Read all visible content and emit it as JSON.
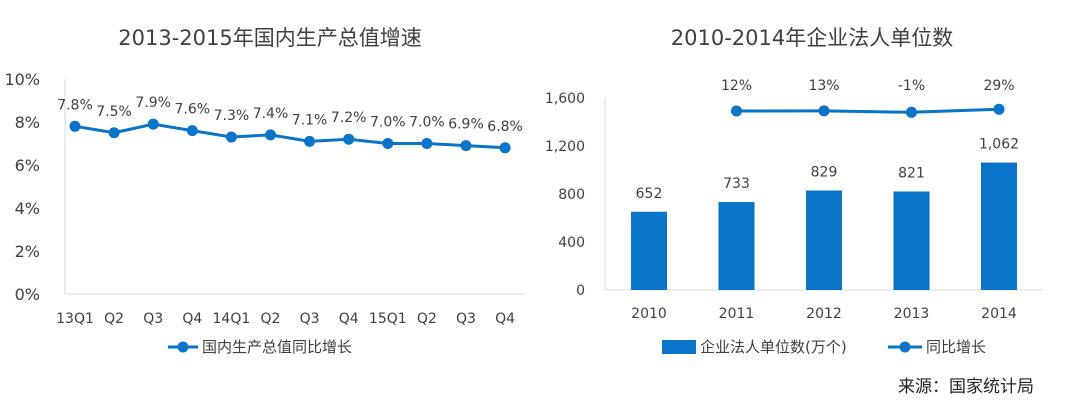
{
  "chart_data": [
    {
      "type": "line",
      "title": "2013-2015年国内生产总值增速",
      "categories": [
        "13Q1",
        "Q2",
        "Q3",
        "Q4",
        "14Q1",
        "Q2",
        "Q3",
        "Q4",
        "15Q1",
        "Q2",
        "Q3",
        "Q4"
      ],
      "series": [
        {
          "name": "国内生产总值同比增长",
          "values": [
            7.8,
            7.5,
            7.9,
            7.6,
            7.3,
            7.4,
            7.1,
            7.2,
            7.0,
            7.0,
            6.9,
            6.8
          ],
          "color": "#0a74c8"
        }
      ],
      "data_labels": [
        "7.8%",
        "7.5%",
        "7.9%",
        "7.6%",
        "7.3%",
        "7.4%",
        "7.1%",
        "7.2%",
        "7.0%",
        "7.0%",
        "6.9%",
        "6.8%"
      ],
      "yticks": [
        "0%",
        "2%",
        "4%",
        "6%",
        "8%",
        "10%"
      ],
      "ylim": [
        0,
        10
      ],
      "grid": false,
      "legend": "bottom"
    },
    {
      "type": "bar",
      "title": "2010-2014年企业法人单位数",
      "categories": [
        "2010",
        "2011",
        "2012",
        "2013",
        "2014"
      ],
      "series": [
        {
          "name": "企业法人单位数(万个)",
          "values": [
            652,
            733,
            829,
            821,
            1062
          ],
          "color": "#0a74c8"
        },
        {
          "name": "同比增长",
          "type": "line",
          "values": [
            null,
            12,
            13,
            -1,
            29
          ],
          "color": "#0a74c8"
        }
      ],
      "bar_labels": [
        "652",
        "733",
        "829",
        "821",
        "1,062"
      ],
      "line_labels": [
        "12%",
        "13%",
        "-1%",
        "29%"
      ],
      "yticks": [
        "0",
        "400",
        "800",
        "1,200",
        "1,600"
      ],
      "ylim": [
        0,
        1600
      ],
      "grid": false,
      "legend": "bottom"
    }
  ],
  "source_note": "来源：国家统计局"
}
